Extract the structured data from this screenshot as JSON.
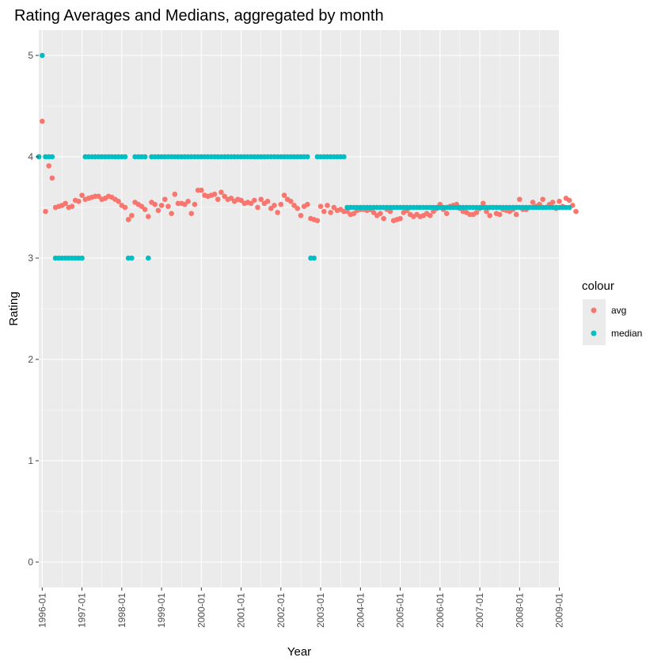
{
  "chart_data": {
    "type": "scatter",
    "title": "Rating Averages and Medians, aggregated by month",
    "xlabel": "Year",
    "ylabel": "Rating",
    "ylim": [
      0,
      5
    ],
    "yticks": [
      "0",
      "1",
      "2",
      "3",
      "4",
      "5"
    ],
    "xticks": [
      "1996-01",
      "1997-01",
      "1998-01",
      "1999-01",
      "2000-01",
      "2001-01",
      "2002-01",
      "2003-01",
      "2004-01",
      "2005-01",
      "2006-01",
      "2007-01",
      "2008-01",
      "2009-01"
    ],
    "grid": true,
    "legend": {
      "title": "colour",
      "position": "right"
    },
    "series": [
      {
        "name": "avg",
        "color": "#F8766D",
        "x_start": "1995-12",
        "values": [
          4.0,
          4.35,
          3.46,
          3.91,
          3.79,
          3.5,
          3.51,
          3.52,
          3.54,
          3.5,
          3.51,
          3.57,
          3.56,
          3.62,
          3.58,
          3.59,
          3.6,
          3.61,
          3.61,
          3.58,
          3.59,
          3.61,
          3.6,
          3.58,
          3.56,
          3.52,
          3.5,
          3.38,
          3.42,
          3.55,
          3.53,
          3.51,
          3.48,
          3.41,
          3.55,
          3.53,
          3.47,
          3.52,
          3.58,
          3.51,
          3.44,
          3.63,
          3.54,
          3.54,
          3.53,
          3.56,
          3.44,
          3.53,
          3.67,
          3.67,
          3.62,
          3.61,
          3.62,
          3.63,
          3.58,
          3.65,
          3.61,
          3.58,
          3.59,
          3.56,
          3.58,
          3.57,
          3.54,
          3.55,
          3.54,
          3.57,
          3.5,
          3.58,
          3.54,
          3.56,
          3.49,
          3.52,
          3.45,
          3.53,
          3.62,
          3.58,
          3.56,
          3.52,
          3.49,
          3.42,
          3.51,
          3.53,
          3.39,
          3.38,
          3.37,
          3.51,
          3.46,
          3.52,
          3.45,
          3.5,
          3.47,
          3.48,
          3.46,
          3.46,
          3.43,
          3.44,
          3.47,
          3.48,
          3.48,
          3.47,
          3.48,
          3.45,
          3.42,
          3.44,
          3.39,
          3.48,
          3.46,
          3.37,
          3.38,
          3.39,
          3.45,
          3.47,
          3.43,
          3.41,
          3.43,
          3.41,
          3.42,
          3.44,
          3.42,
          3.46,
          3.49,
          3.53,
          3.48,
          3.44,
          3.51,
          3.52,
          3.53,
          3.49,
          3.46,
          3.45,
          3.43,
          3.43,
          3.45,
          3.49,
          3.54,
          3.46,
          3.42,
          3.5,
          3.44,
          3.43,
          3.48,
          3.47,
          3.46,
          3.48,
          3.43,
          3.58,
          3.48,
          3.48,
          3.5,
          3.55,
          3.51,
          3.53,
          3.58,
          3.5,
          3.53,
          3.55,
          3.49,
          3.56,
          3.51,
          3.59,
          3.57,
          3.52,
          3.46
        ]
      },
      {
        "name": "median",
        "color": "#00BFC4",
        "x_start": "1995-12",
        "values": [
          4,
          5,
          4,
          4,
          4,
          3,
          3,
          3,
          3,
          3,
          3,
          3,
          3,
          3,
          4,
          4,
          4,
          4,
          4,
          4,
          4,
          4,
          4,
          4,
          4,
          4,
          4,
          3,
          3,
          4,
          4,
          4,
          4,
          3,
          4,
          4,
          4,
          4,
          4,
          4,
          4,
          4,
          4,
          4,
          4,
          4,
          4,
          4,
          4,
          4,
          4,
          4,
          4,
          4,
          4,
          4,
          4,
          4,
          4,
          4,
          4,
          4,
          4,
          4,
          4,
          4,
          4,
          4,
          4,
          4,
          4,
          4,
          4,
          4,
          4,
          4,
          4,
          4,
          4,
          4,
          4,
          4,
          3,
          3,
          4,
          4,
          4,
          4,
          4,
          4,
          4,
          4,
          4,
          3.5,
          3.5,
          3.5,
          3.5,
          3.5,
          3.5,
          3.5,
          3.5,
          3.5,
          3.5,
          3.5,
          3.5,
          3.5,
          3.5,
          3.5,
          3.5,
          3.5,
          3.5,
          3.5,
          3.5,
          3.5,
          3.5,
          3.5,
          3.5,
          3.5,
          3.5,
          3.5,
          3.5,
          3.5,
          3.5,
          3.5,
          3.5,
          3.5,
          3.5,
          3.5,
          3.5,
          3.5,
          3.5,
          3.5,
          3.5,
          3.5,
          3.5,
          3.5,
          3.5,
          3.5,
          3.5,
          3.5,
          3.5,
          3.5,
          3.5,
          3.5,
          3.5,
          3.5,
          3.5,
          3.5,
          3.5,
          3.5,
          3.5,
          3.5,
          3.5,
          3.5,
          3.5,
          3.5,
          3.5,
          3.5,
          3.5,
          3.5,
          3.5
        ]
      }
    ]
  }
}
